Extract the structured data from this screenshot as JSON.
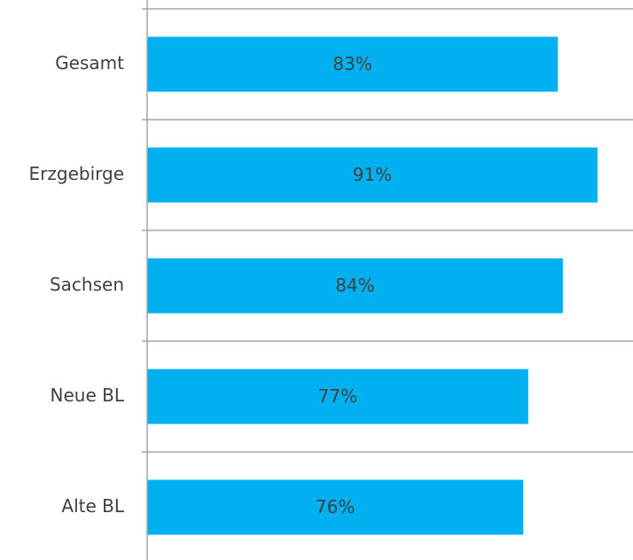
{
  "chart_data": {
    "type": "barh",
    "categories": [
      "Gesamt",
      "Erzgebirge",
      "Sachsen",
      "Neue BL",
      "Alte BL"
    ],
    "values": [
      83,
      91,
      84,
      77,
      76
    ],
    "value_labels": [
      "83%",
      "91%",
      "84%",
      "77%",
      "76%"
    ],
    "color": "#00b0f0",
    "xlim": [
      0,
      98
    ]
  }
}
